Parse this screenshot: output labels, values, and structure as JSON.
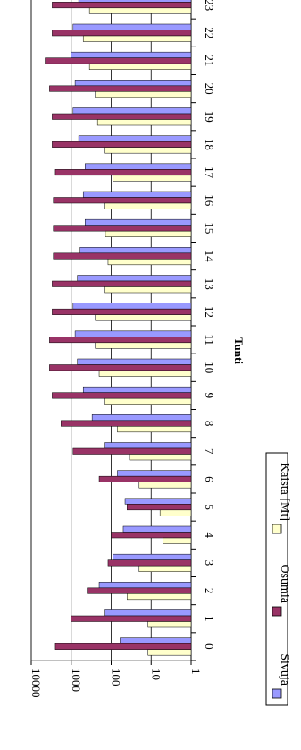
{
  "chart_data": {
    "type": "bar",
    "orientation": "horizontal",
    "title": "",
    "xlabel": "Tunti",
    "ylabel": "",
    "yscale": "log",
    "ylim": [
      1,
      10000
    ],
    "yticks": [
      "1",
      "10",
      "100",
      "1000",
      "10000"
    ],
    "categories": [
      "0",
      "1",
      "2",
      "3",
      "4",
      "5",
      "6",
      "7",
      "8",
      "9",
      "10",
      "11",
      "12",
      "13",
      "14",
      "15",
      "16",
      "17",
      "18",
      "19",
      "20",
      "21",
      "22",
      "23"
    ],
    "grid": "major value gridlines",
    "legend": "bottom",
    "series": [
      {
        "name": "Sivuja",
        "color": "#9999ff",
        "values": [
          60,
          150,
          200,
          90,
          50,
          45,
          70,
          150,
          300,
          500,
          700,
          800,
          900,
          700,
          600,
          450,
          500,
          450,
          650,
          900,
          800,
          1000,
          900,
          650
        ]
      },
      {
        "name": "Osumia",
        "color": "#993366",
        "values": [
          2500,
          1000,
          400,
          120,
          100,
          40,
          200,
          900,
          1800,
          3000,
          3500,
          3500,
          3000,
          3000,
          2800,
          2800,
          2800,
          2500,
          3000,
          3000,
          3500,
          4500,
          3000,
          3000
        ]
      },
      {
        "name": "Kaista [Mt]",
        "color": "#ffffcc",
        "values": [
          12,
          12,
          40,
          20,
          5,
          6,
          20,
          35,
          70,
          150,
          200,
          250,
          250,
          150,
          120,
          140,
          150,
          90,
          150,
          220,
          250,
          350,
          500,
          350
        ]
      }
    ]
  }
}
